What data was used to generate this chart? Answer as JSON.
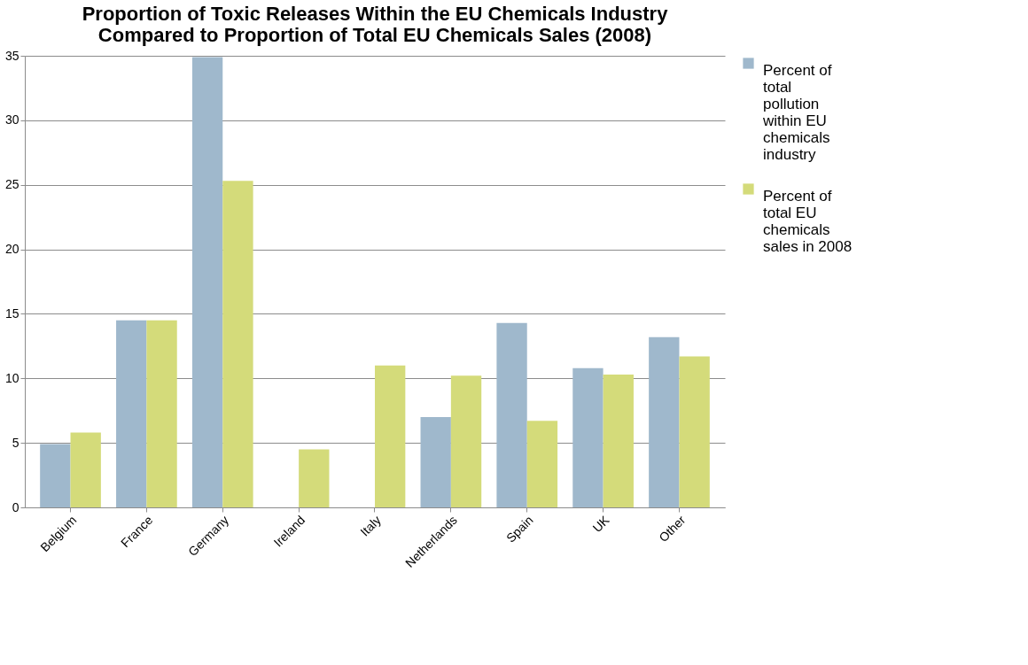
{
  "chart_data": {
    "type": "bar",
    "title": "Proportion of Toxic Releases Within the EU Chemicals Industry Compared to Proportion of Total EU Chemicals Sales (2008)",
    "categories": [
      "Belgium",
      "France",
      "Germany",
      "Ireland",
      "Italy",
      "Netherlands",
      "Spain",
      "UK",
      "Other"
    ],
    "series": [
      {
        "name": "Percent of total pollution within EU chemicals industry",
        "color": "#9fb8cc",
        "values": [
          4.9,
          14.5,
          34.9,
          0,
          0,
          7.0,
          14.3,
          10.8,
          13.2
        ]
      },
      {
        "name": "Percent of total EU chemicals sales in 2008",
        "color": "#d4db7a",
        "values": [
          5.8,
          14.5,
          25.3,
          4.5,
          11.0,
          10.2,
          6.7,
          10.3,
          11.7
        ]
      }
    ],
    "ylim": [
      0,
      35
    ],
    "yticks": [
      0,
      5,
      10,
      15,
      20,
      25,
      30,
      35
    ],
    "grid": "y",
    "legend": "right"
  }
}
